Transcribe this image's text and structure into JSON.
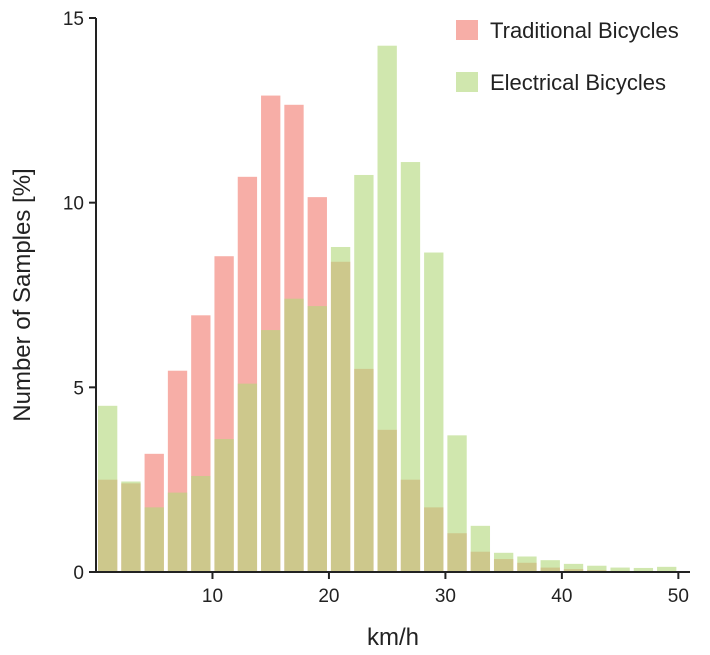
{
  "chart_data": {
    "type": "bar",
    "title": "",
    "xlabel": "km/h",
    "ylabel": "Number of Samples [%]",
    "xlim": [
      0,
      51
    ],
    "ylim": [
      0,
      15
    ],
    "x_ticks": [
      10,
      20,
      30,
      40,
      50
    ],
    "y_ticks": [
      0,
      5,
      10,
      15
    ],
    "bin_width": 2,
    "bin_centers": [
      1,
      3,
      5,
      7,
      9,
      11,
      13,
      15,
      17,
      19,
      21,
      23,
      25,
      27,
      29,
      31,
      33,
      35,
      37,
      39,
      41,
      43,
      45,
      47,
      49
    ],
    "grid": false,
    "legend_position": "top-right",
    "overlay": true,
    "series": [
      {
        "name": "Traditional Bicycles",
        "color": "#f4938a",
        "values": [
          2.5,
          2.4,
          3.2,
          5.45,
          6.95,
          8.55,
          10.7,
          12.9,
          12.65,
          10.15,
          8.4,
          5.5,
          3.85,
          2.5,
          1.75,
          1.05,
          0.55,
          0.35,
          0.25,
          0.12,
          0.08,
          0.05,
          0.03,
          0.02,
          0.01
        ]
      },
      {
        "name": "Electrical Bicycles",
        "color": "#b3d97c",
        "values": [
          4.5,
          2.45,
          1.75,
          2.15,
          2.6,
          3.6,
          5.1,
          6.55,
          7.4,
          7.2,
          8.8,
          10.75,
          14.25,
          11.1,
          8.65,
          3.7,
          1.25,
          0.52,
          0.42,
          0.32,
          0.22,
          0.17,
          0.12,
          0.11,
          0.14
        ]
      }
    ]
  }
}
